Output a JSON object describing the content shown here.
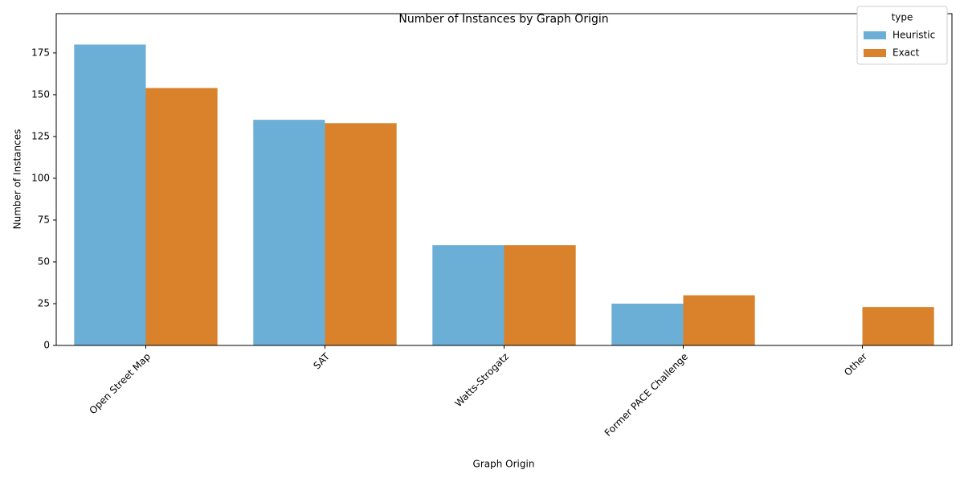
{
  "chart_data": {
    "type": "bar",
    "title": "Number of Instances by Graph Origin",
    "x_label": "Graph Origin",
    "y_label": "Number of Instances",
    "legend_title": "type",
    "legend_position": "upper right",
    "categories": [
      "Open Street Map",
      "SAT",
      "Watts-Strogatz",
      "Former PACE Challenge",
      "Other"
    ],
    "series": [
      {
        "name": "Heuristic",
        "color": "#6baed6",
        "values": [
          180,
          135,
          60,
          25,
          null
        ]
      },
      {
        "name": "Exact",
        "color": "#d9822b",
        "values": [
          154,
          133,
          60,
          30,
          23
        ]
      }
    ],
    "ylim": [
      0,
      198.5
    ],
    "yticks": [
      0,
      25,
      50,
      75,
      100,
      125,
      150,
      175
    ]
  }
}
